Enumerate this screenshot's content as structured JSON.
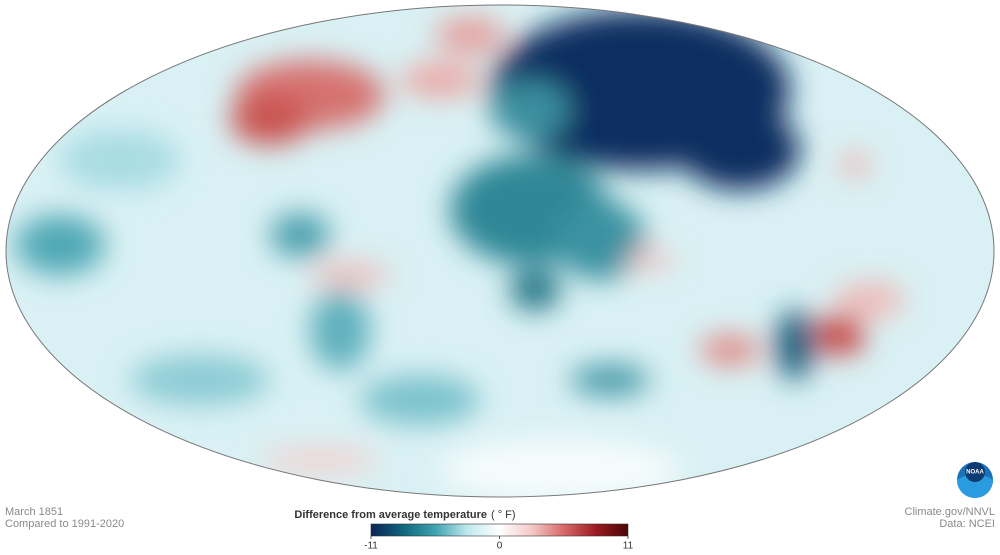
{
  "map": {
    "date": "March 1851",
    "baseline": "Compared to 1991-2020"
  },
  "legend": {
    "title": "Difference from average temperature",
    "unit": "( ° F)",
    "range": [
      -11,
      11
    ],
    "ticks": [
      -11,
      0,
      11
    ],
    "colors": [
      "#0c2356",
      "#10677d",
      "#3ea3b0",
      "#bfe9ee",
      "#ffffff",
      "#f3c9c7",
      "#d76a68",
      "#9c1b22",
      "#4a0505"
    ]
  },
  "credits": {
    "source": "Climate.gov/NNVL",
    "data": "Data: NCEI",
    "logo": "NOAA"
  }
}
